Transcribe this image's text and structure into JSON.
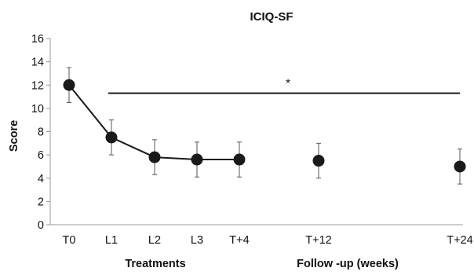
{
  "chart_data": {
    "type": "scatter",
    "title": "ICIQ-SF",
    "ylabel": "Score",
    "xlabel_groups": [
      "Treatments",
      "Follow -up (weeks)"
    ],
    "ylim": [
      0,
      16
    ],
    "yticks": [
      0,
      2,
      4,
      6,
      8,
      10,
      12,
      14,
      16
    ],
    "grid": false,
    "legend": "none",
    "categories": [
      "T0",
      "L1",
      "L2",
      "L3",
      "T+4",
      "T+12",
      "T+24"
    ],
    "x_weeks": [
      0,
      1,
      2,
      3,
      4,
      12,
      24
    ],
    "series": [
      {
        "values": [
          12.0,
          7.5,
          5.8,
          5.6,
          5.6,
          5.5,
          5.0
        ],
        "error": [
          1.5,
          1.5,
          1.5,
          1.5,
          1.5,
          1.5,
          1.5
        ],
        "connected_points": 5
      }
    ],
    "annotations": [
      {
        "text": "*",
        "type": "significance-line",
        "y": 11.3,
        "x_from": "L1",
        "x_to": "T+24"
      }
    ],
    "colors": {
      "marker": "#1a1a1a",
      "line": "#1a1a1a",
      "axis": "#999999",
      "text": "#111111"
    }
  }
}
